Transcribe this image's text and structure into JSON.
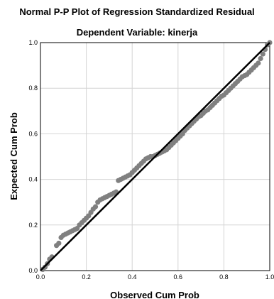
{
  "chart_data": {
    "type": "scatter",
    "title": "Normal P-P Plot of Regression Standardized Residual",
    "subtitle": "Dependent Variable: kinerja",
    "xlabel": "Observed Cum Prob",
    "ylabel": "Expected Cum Prob",
    "xlim": [
      0,
      1
    ],
    "ylim": [
      0,
      1
    ],
    "x_ticks": [
      "0.0",
      "0.2",
      "0.4",
      "0.6",
      "0.8",
      "1.0"
    ],
    "y_ticks": [
      "0.0",
      "0.2",
      "0.4",
      "0.6",
      "0.8",
      "1.0"
    ],
    "grid": true,
    "reference_line": [
      [
        0,
        0
      ],
      [
        1,
        1
      ]
    ],
    "colors": {
      "points": "#808080",
      "line": "#000000",
      "grid": "#d4d4d4",
      "frame": "#000000"
    },
    "points": [
      [
        0.01,
        0.005
      ],
      [
        0.02,
        0.015
      ],
      [
        0.03,
        0.03
      ],
      [
        0.04,
        0.05
      ],
      [
        0.05,
        0.06
      ],
      [
        0.07,
        0.11
      ],
      [
        0.08,
        0.12
      ],
      [
        0.09,
        0.145
      ],
      [
        0.1,
        0.155
      ],
      [
        0.11,
        0.16
      ],
      [
        0.12,
        0.165
      ],
      [
        0.13,
        0.17
      ],
      [
        0.14,
        0.175
      ],
      [
        0.15,
        0.18
      ],
      [
        0.16,
        0.185
      ],
      [
        0.17,
        0.2
      ],
      [
        0.18,
        0.21
      ],
      [
        0.19,
        0.22
      ],
      [
        0.2,
        0.23
      ],
      [
        0.21,
        0.24
      ],
      [
        0.22,
        0.255
      ],
      [
        0.23,
        0.27
      ],
      [
        0.24,
        0.28
      ],
      [
        0.25,
        0.3
      ],
      [
        0.26,
        0.31
      ],
      [
        0.27,
        0.315
      ],
      [
        0.28,
        0.32
      ],
      [
        0.29,
        0.325
      ],
      [
        0.3,
        0.33
      ],
      [
        0.31,
        0.335
      ],
      [
        0.32,
        0.34
      ],
      [
        0.33,
        0.345
      ],
      [
        0.34,
        0.395
      ],
      [
        0.35,
        0.4
      ],
      [
        0.36,
        0.405
      ],
      [
        0.37,
        0.41
      ],
      [
        0.38,
        0.415
      ],
      [
        0.39,
        0.42
      ],
      [
        0.4,
        0.43
      ],
      [
        0.41,
        0.44
      ],
      [
        0.42,
        0.45
      ],
      [
        0.43,
        0.46
      ],
      [
        0.44,
        0.47
      ],
      [
        0.45,
        0.48
      ],
      [
        0.46,
        0.49
      ],
      [
        0.47,
        0.495
      ],
      [
        0.48,
        0.5
      ],
      [
        0.49,
        0.5
      ],
      [
        0.5,
        0.505
      ],
      [
        0.51,
        0.51
      ],
      [
        0.52,
        0.515
      ],
      [
        0.53,
        0.52
      ],
      [
        0.54,
        0.525
      ],
      [
        0.55,
        0.53
      ],
      [
        0.56,
        0.54
      ],
      [
        0.57,
        0.55
      ],
      [
        0.58,
        0.56
      ],
      [
        0.59,
        0.57
      ],
      [
        0.6,
        0.58
      ],
      [
        0.61,
        0.59
      ],
      [
        0.62,
        0.6
      ],
      [
        0.63,
        0.615
      ],
      [
        0.64,
        0.625
      ],
      [
        0.65,
        0.635
      ],
      [
        0.66,
        0.645
      ],
      [
        0.67,
        0.655
      ],
      [
        0.68,
        0.665
      ],
      [
        0.69,
        0.675
      ],
      [
        0.7,
        0.68
      ],
      [
        0.71,
        0.69
      ],
      [
        0.72,
        0.7
      ],
      [
        0.73,
        0.705
      ],
      [
        0.74,
        0.715
      ],
      [
        0.75,
        0.725
      ],
      [
        0.76,
        0.735
      ],
      [
        0.77,
        0.745
      ],
      [
        0.78,
        0.755
      ],
      [
        0.79,
        0.765
      ],
      [
        0.8,
        0.77
      ],
      [
        0.81,
        0.78
      ],
      [
        0.82,
        0.79
      ],
      [
        0.83,
        0.8
      ],
      [
        0.84,
        0.81
      ],
      [
        0.85,
        0.82
      ],
      [
        0.86,
        0.83
      ],
      [
        0.87,
        0.84
      ],
      [
        0.88,
        0.85
      ],
      [
        0.89,
        0.855
      ],
      [
        0.9,
        0.86
      ],
      [
        0.91,
        0.87
      ],
      [
        0.92,
        0.88
      ],
      [
        0.93,
        0.89
      ],
      [
        0.94,
        0.9
      ],
      [
        0.95,
        0.91
      ],
      [
        0.96,
        0.93
      ],
      [
        0.97,
        0.95
      ],
      [
        0.98,
        0.97
      ],
      [
        0.99,
        0.99
      ],
      [
        1.0,
        1.0
      ]
    ]
  }
}
